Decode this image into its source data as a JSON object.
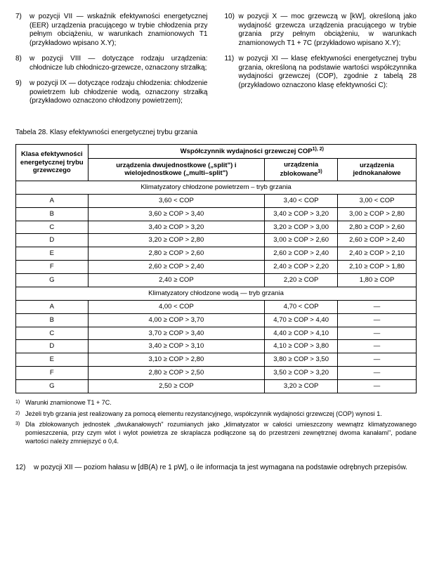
{
  "leftItems": [
    {
      "n": "7)",
      "t": "w pozycji VII — wskaźnik efektywności energetycznej (EER) urządzenia pracującego w trybie chłodzenia przy pełnym obciążeniu, w warunkach znamionowych T1 (przykładowo wpisano X.Y);"
    },
    {
      "n": "8)",
      "t": "w pozycji VIII — dotyczące rodzaju urządzenia: chłodnicze lub chłodniczo-grzewcze, oznaczony strzałką;"
    },
    {
      "n": "9)",
      "t": "w pozycji IX — dotyczące rodzaju chłodzenia: chłodzenie powietrzem lub chłodzenie wodą, oznaczony strzałką (przykładowo oznaczono chłodzony powietrzem);"
    }
  ],
  "rightItems": [
    {
      "n": "10)",
      "t": "w pozycji X — moc grzewczą w [kW], określoną jako wydajność grzewcza urządzenia pracującego w trybie grzania przy pełnym obciążeniu, w warunkach znamionowych T1 + 7C (przykładowo wpisano X.Y);"
    },
    {
      "n": "11)",
      "t": "w pozycji XI — klasę efektywności energetycznej trybu grzania, określoną na podstawie wartości współczynnika wydajności grzewczej (COP), zgodnie z tabelą 28 (przykładowo oznaczono klasę efektywności C):"
    }
  ],
  "tableCaption": "Tabela 28. Klasy efektywności energetycznej trybu grzania",
  "header": {
    "rowLabel": "Klasa efektywności energetycznej trybu grzewczego",
    "topSpan": "Współczynnik wydajności grzewczej COP",
    "sup1": "1), 2)",
    "c1": "urządzenia dwujednostkowe („split\") i wielojednostkowe („multi–split\")",
    "c2": "urządzenia zblokowane",
    "sup3": "3)",
    "c3": "urządzenia jednokanałowe"
  },
  "section1": "Klimatyzatory chłodzone powietrzem – tryb grzania",
  "rows1": [
    [
      "A",
      "3,60 < COP",
      "3,40 < COP",
      "3,00 < COP"
    ],
    [
      "B",
      "3,60 ≥ COP > 3,40",
      "3,40 ≥ COP > 3,20",
      "3,00 ≥ COP > 2,80"
    ],
    [
      "C",
      "3,40 ≥ COP > 3,20",
      "3,20 ≥ COP > 3,00",
      "2,80 ≥ COP > 2,60"
    ],
    [
      "D",
      "3,20 ≥ COP > 2,80",
      "3,00 ≥ COP > 2,60",
      "2,60 ≥ COP > 2,40"
    ],
    [
      "E",
      "2,80 ≥ COP > 2,60",
      "2,60 ≥ COP > 2,40",
      "2,40 ≥ COP > 2,10"
    ],
    [
      "F",
      "2,60 ≥ COP > 2,40",
      "2,40 ≥ COP > 2,20",
      "2,10 ≥ COP > 1,80"
    ],
    [
      "G",
      "2,40 ≥ COP",
      "2,20 ≥ COP",
      "1,80 ≥ COP"
    ]
  ],
  "section2": "Klimatyzatory chłodzone wodą — tryb grzania",
  "rows2": [
    [
      "A",
      "4,00 < COP",
      "4,70 < COP",
      "—"
    ],
    [
      "B",
      "4,00 ≥ COP > 3,70",
      "4,70 ≥ COP > 4,40",
      "—"
    ],
    [
      "C",
      "3,70 ≥ COP > 3,40",
      "4,40 ≥ COP > 4,10",
      "—"
    ],
    [
      "D",
      "3,40 ≥ COP > 3,10",
      "4,10 ≥ COP > 3,80",
      "—"
    ],
    [
      "E",
      "3,10 ≥ COP > 2,80",
      "3,80 ≥ COP > 3,50",
      "—"
    ],
    [
      "F",
      "2,80 ≥ COP > 2,50",
      "3,50 ≥ COP > 3,20",
      "—"
    ],
    [
      "G",
      "2,50 ≥ COP",
      "3,20 ≥ COP",
      "—"
    ]
  ],
  "footnotes": [
    {
      "n": "1)",
      "t": "Warunki znamionowe T1 + 7C."
    },
    {
      "n": "2)",
      "t": "Jeżeli tryb grzania jest realizowany za pomocą elementu rezystancyjnego, współczynnik wydajności grzewczej (COP) wynosi 1."
    },
    {
      "n": "3)",
      "t": "Dla zblokowanych jednostek „dwukanałowych\" rozumianych jako „klimatyzator w całości umieszczony wewnątrz klimatyzowanego pomieszczenia, przy czym wlot i wylot powietrza ze skraplacza podłączone są do przestrzeni zewnętrznej dwoma kanałami\", podane wartości należy zmniejszyć o 0,4."
    }
  ],
  "bottom": {
    "n": "12)",
    "t": "w pozycji XII — poziom hałasu w [dB(A) re 1 pW], o ile informacja ta jest wymagana na podstawie odrębnych przepisów."
  }
}
